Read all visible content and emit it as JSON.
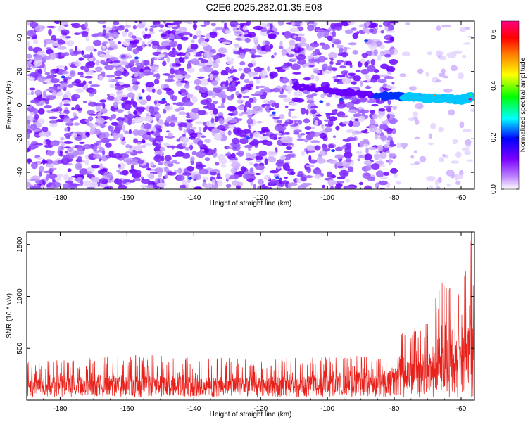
{
  "title": "C2E6.2025.232.01.35.E08",
  "chart_data": [
    {
      "type": "heatmap",
      "title": "C2E6.2025.232.01.35.E08",
      "xlabel": "Height of straight line (km)",
      "ylabel": "Frequency (Hz)",
      "xlim": [
        -190,
        -56
      ],
      "ylim": [
        -50,
        50
      ],
      "xticks": [
        -180,
        -160,
        -140,
        -120,
        -100,
        -80,
        -60
      ],
      "yticks": [
        -40,
        -20,
        0,
        20,
        40
      ],
      "colorbar": {
        "label": "Normalized spectral amplitude",
        "range": [
          0.0,
          0.65
        ],
        "ticks": [
          0.0,
          0.2,
          0.4,
          0.6
        ],
        "colors": [
          "#ffffff",
          "#7b00ff",
          "#0000ff",
          "#00ffff",
          "#00ff00",
          "#ffff00",
          "#ff8000",
          "#ff0000",
          "#ff0080"
        ]
      },
      "signal_track": {
        "description": "narrowband line near +5 Hz strengthening toward -60 km",
        "points": [
          [
            -110,
            11
          ],
          [
            -100,
            9
          ],
          [
            -90,
            7
          ],
          [
            -80,
            5
          ],
          [
            -75,
            5
          ],
          [
            -70,
            4
          ],
          [
            -65,
            4
          ],
          [
            -60,
            3
          ],
          [
            -57,
            5
          ]
        ]
      }
    },
    {
      "type": "line",
      "xlabel": "Height of straight line (km)",
      "ylabel": "SNR (10 * v/v)",
      "xlim": [
        -190,
        -56
      ],
      "ylim": [
        0,
        1620
      ],
      "xticks": [
        -180,
        -160,
        -140,
        -120,
        -100,
        -80,
        -60
      ],
      "yticks": [
        500,
        1000,
        1500
      ],
      "series": [
        {
          "name": "SNR",
          "color": "#e8201a",
          "envelope": [
            {
              "x": -190,
              "base": 160,
              "peak": 380
            },
            {
              "x": -150,
              "base": 170,
              "peak": 450
            },
            {
              "x": -120,
              "base": 160,
              "peak": 400
            },
            {
              "x": -100,
              "base": 170,
              "peak": 420
            },
            {
              "x": -85,
              "base": 190,
              "peak": 450
            },
            {
              "x": -80,
              "base": 250,
              "peak": 600
            },
            {
              "x": -70,
              "base": 350,
              "peak": 800
            },
            {
              "x": -65,
              "base": 400,
              "peak": 1200
            },
            {
              "x": -60,
              "base": 500,
              "peak": 1050
            },
            {
              "x": -57,
              "base": 600,
              "peak": 1620
            }
          ]
        }
      ]
    }
  ]
}
